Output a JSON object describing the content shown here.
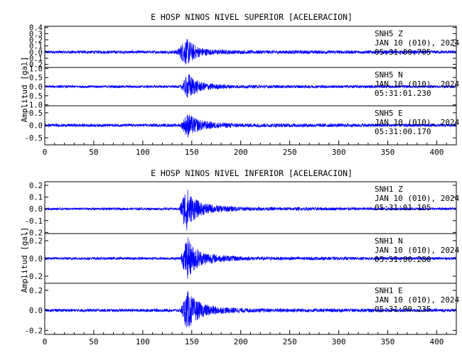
{
  "chart_data": [
    {
      "type": "line",
      "title": "E HOSP NINOS NIVEL SUPERIOR [ACELERACION]",
      "ylabel": "Amplitud [gal]",
      "xlim": [
        0,
        420
      ],
      "x_ticks": [
        0,
        50,
        100,
        150,
        200,
        250,
        300,
        350,
        400
      ],
      "line_color": "#0000ff",
      "series": [
        {
          "name": "SNH5 Z",
          "station": "SNH5",
          "component": "Z",
          "date": "JAN 10 (010), 2024",
          "time": "05:31:00.705",
          "ylim": [
            -0.25,
            0.42
          ],
          "y_ticks": [
            -0.2,
            -0.1,
            0.0,
            0.1,
            0.2,
            0.3,
            0.4
          ],
          "y_tick_labels": [
            "-0.2",
            "-0.1",
            "0.0",
            "0.1",
            "0.2",
            "0.3",
            "0.4"
          ],
          "noise_amplitude": 0.02,
          "event_onset": 133,
          "event_peak_time": 146,
          "event_peak_amplitude": 0.22,
          "envelope": [
            [
              0,
              0.025
            ],
            [
              130,
              0.025
            ],
            [
              136,
              0.05
            ],
            [
              140,
              0.15
            ],
            [
              143,
              0.2
            ],
            [
              146,
              0.22
            ],
            [
              150,
              0.15
            ],
            [
              158,
              0.08
            ],
            [
              170,
              0.045
            ],
            [
              200,
              0.03
            ],
            [
              420,
              0.025
            ]
          ]
        },
        {
          "name": "SNH5 N",
          "station": "SNH5",
          "component": "N",
          "date": "JAN 10 (010), 2024",
          "time": "05:31:01.230",
          "ylim": [
            -1.05,
            1.05
          ],
          "y_ticks": [
            -1.0,
            -0.5,
            0.0,
            0.5,
            1.0
          ],
          "y_tick_labels": [
            "-1.0",
            "-0.5",
            "0.0",
            "0.5",
            "1.0"
          ],
          "noise_amplitude": 0.06,
          "event_onset": 138,
          "event_peak_time": 147,
          "event_peak_amplitude": 0.75,
          "envelope": [
            [
              0,
              0.07
            ],
            [
              138,
              0.07
            ],
            [
              141,
              0.25
            ],
            [
              144,
              0.55
            ],
            [
              147,
              0.75
            ],
            [
              152,
              0.45
            ],
            [
              160,
              0.25
            ],
            [
              175,
              0.14
            ],
            [
              200,
              0.09
            ],
            [
              420,
              0.07
            ]
          ]
        },
        {
          "name": "SNH5 E",
          "station": "SNH5",
          "component": "E",
          "date": "JAN 10 (010), 2024",
          "time": "05:31:00.170",
          "ylim": [
            -0.78,
            0.78
          ],
          "y_ticks": [
            -0.5,
            0.0,
            0.5
          ],
          "y_tick_labels": [
            "-0.5",
            "0.0",
            "0.5"
          ],
          "noise_amplitude": 0.05,
          "event_onset": 138,
          "event_peak_time": 146,
          "event_peak_amplitude": 0.5,
          "envelope": [
            [
              0,
              0.06
            ],
            [
              138,
              0.06
            ],
            [
              141,
              0.2
            ],
            [
              144,
              0.42
            ],
            [
              146,
              0.5
            ],
            [
              151,
              0.35
            ],
            [
              160,
              0.2
            ],
            [
              175,
              0.12
            ],
            [
              200,
              0.08
            ],
            [
              420,
              0.06
            ]
          ]
        }
      ]
    },
    {
      "type": "line",
      "title": "E HOSP NINOS NIVEL INFERIOR [ACELERACION]",
      "ylabel": "Amplitud [gal]",
      "xlim": [
        0,
        420
      ],
      "x_ticks": [
        0,
        50,
        100,
        150,
        200,
        250,
        300,
        350,
        400
      ],
      "line_color": "#0000ff",
      "series": [
        {
          "name": "SNH1 Z",
          "station": "SNH1",
          "component": "Z",
          "date": "JAN 10 (010), 2024",
          "time": "05:31:01.105",
          "ylim": [
            -0.21,
            0.23
          ],
          "y_ticks": [
            -0.2,
            -0.1,
            0.0,
            0.1,
            0.2
          ],
          "y_tick_labels": [
            "-0.2",
            "-0.1",
            "0.0",
            "0.1",
            "0.2"
          ],
          "noise_amplitude": 0.01,
          "event_onset": 138,
          "event_peak_time": 145,
          "event_peak_amplitude": 0.19,
          "envelope": [
            [
              0,
              0.01
            ],
            [
              137,
              0.01
            ],
            [
              140,
              0.08
            ],
            [
              143,
              0.17
            ],
            [
              145,
              0.19
            ],
            [
              149,
              0.12
            ],
            [
              158,
              0.06
            ],
            [
              175,
              0.03
            ],
            [
              210,
              0.015
            ],
            [
              420,
              0.01
            ]
          ]
        },
        {
          "name": "SNH1 N",
          "station": "SNH1",
          "component": "N",
          "date": "JAN 10 (010), 2024",
          "time": "05:31:00.280",
          "ylim": [
            -0.28,
            0.28
          ],
          "y_ticks": [
            -0.2,
            0.0,
            0.2
          ],
          "y_tick_labels": [
            "-0.2",
            "0.0",
            "0.2"
          ],
          "noise_amplitude": 0.015,
          "event_onset": 138,
          "event_peak_time": 146,
          "event_peak_amplitude": 0.24,
          "envelope": [
            [
              0,
              0.015
            ],
            [
              138,
              0.015
            ],
            [
              141,
              0.1
            ],
            [
              144,
              0.2
            ],
            [
              146,
              0.24
            ],
            [
              151,
              0.15
            ],
            [
              160,
              0.08
            ],
            [
              178,
              0.04
            ],
            [
              210,
              0.02
            ],
            [
              420,
              0.015
            ]
          ]
        },
        {
          "name": "SNH1 E",
          "station": "SNH1",
          "component": "E",
          "date": "JAN 10 (010), 2024",
          "time": "05:31:00.235",
          "ylim": [
            -0.24,
            0.27
          ],
          "y_ticks": [
            -0.2,
            0.0,
            0.2
          ],
          "y_tick_labels": [
            "-0.2",
            "0.0",
            "0.2"
          ],
          "noise_amplitude": 0.015,
          "event_onset": 138,
          "event_peak_time": 146,
          "event_peak_amplitude": 0.2,
          "envelope": [
            [
              0,
              0.015
            ],
            [
              138,
              0.015
            ],
            [
              141,
              0.08
            ],
            [
              144,
              0.17
            ],
            [
              146,
              0.2
            ],
            [
              151,
              0.13
            ],
            [
              160,
              0.07
            ],
            [
              178,
              0.035
            ],
            [
              210,
              0.02
            ],
            [
              420,
              0.015
            ]
          ]
        }
      ]
    }
  ]
}
